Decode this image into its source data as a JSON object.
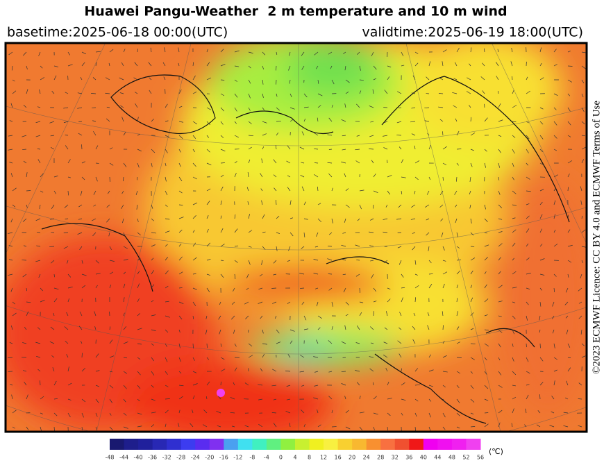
{
  "header": {
    "title": "Huawei Pangu-Weather  2 m temperature and 10 m wind",
    "basetime": "basetime:2025-06-18 00:00(UTC)",
    "validtime": "validtime:2025-06-19 18:00(UTC)"
  },
  "license": "©2023 ECMWF Licence: CC BY 4.0 and ECMWF Terms of Use",
  "colorbar": {
    "ticks": [
      -48,
      -44,
      -40,
      -36,
      -32,
      -28,
      -24,
      -20,
      -16,
      -12,
      -8,
      -4,
      0,
      4,
      8,
      12,
      16,
      20,
      24,
      28,
      32,
      36,
      40,
      44,
      48,
      52,
      56
    ],
    "colors": [
      "#191970",
      "#1e1e8c",
      "#20209c",
      "#2828b4",
      "#2f2fd0",
      "#3c3cf0",
      "#5a2cf0",
      "#8030f0",
      "#4aa0f0",
      "#40e0f0",
      "#40f0c0",
      "#60f080",
      "#90f040",
      "#c8f030",
      "#f0f020",
      "#f8f040",
      "#f8d030",
      "#f8b830",
      "#f89030",
      "#f87040",
      "#f05030",
      "#f01818",
      "#f000f0",
      "#f010f0",
      "#f020f0",
      "#f040f0"
    ],
    "unit": "(℃)"
  }
}
